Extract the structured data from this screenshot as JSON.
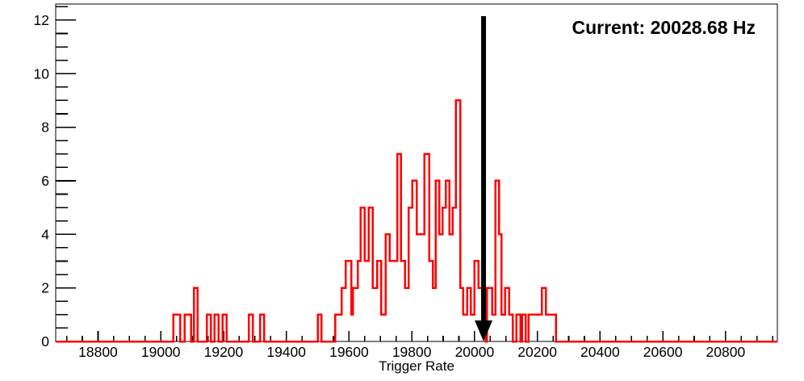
{
  "canvas": {
    "background": "#ffffff"
  },
  "annotation": {
    "current_label": "Current: 20028.68 Hz",
    "arrow_color": "#000000"
  },
  "chart_data": {
    "type": "histogram-step",
    "title": "",
    "xlabel": "Trigger Rate",
    "ylabel": "",
    "legend": null,
    "grid": false,
    "series_color": "#ff0000",
    "axis_color": "#000000",
    "x_range": [
      18665,
      20965
    ],
    "y_range": [
      0,
      12.6
    ],
    "x_tick_values": [
      18800,
      19000,
      19200,
      19400,
      19600,
      19800,
      20000,
      20200,
      20400,
      20600,
      20800
    ],
    "x_tick_labels": [
      "18800",
      "19000",
      "19200",
      "19400",
      "19600",
      "19800",
      "20000",
      "20200",
      "20400",
      "20600",
      "20800"
    ],
    "x_minor_step": 50,
    "y_tick_values": [
      0,
      2,
      4,
      6,
      8,
      10,
      12
    ],
    "y_tick_labels": [
      "0",
      "2",
      "4",
      "6",
      "8",
      "10",
      "12"
    ],
    "y_minor_step": 0.5,
    "arrow": {
      "x": 20028.68
    },
    "bins": [
      [
        19040,
        19062,
        1
      ],
      [
        19076,
        19097,
        1
      ],
      [
        19105,
        19117,
        2
      ],
      [
        19147,
        19160,
        1
      ],
      [
        19171,
        19184,
        1
      ],
      [
        19197,
        19210,
        1
      ],
      [
        19280,
        19293,
        1
      ],
      [
        19317,
        19330,
        1
      ],
      [
        19500,
        19512,
        1
      ],
      [
        19556,
        19576,
        1
      ],
      [
        19576,
        19589,
        2
      ],
      [
        19589,
        19607,
        3
      ],
      [
        19607,
        19613,
        1
      ],
      [
        19613,
        19628,
        2
      ],
      [
        19628,
        19637,
        3
      ],
      [
        19637,
        19650,
        5
      ],
      [
        19650,
        19662,
        3
      ],
      [
        19662,
        19675,
        5
      ],
      [
        19675,
        19690,
        2
      ],
      [
        19690,
        19702,
        3
      ],
      [
        19702,
        19716,
        1
      ],
      [
        19716,
        19730,
        4
      ],
      [
        19730,
        19754,
        3
      ],
      [
        19754,
        19765,
        7
      ],
      [
        19765,
        19778,
        3
      ],
      [
        19778,
        19790,
        2
      ],
      [
        19790,
        19801,
        5
      ],
      [
        19801,
        19815,
        6
      ],
      [
        19815,
        19840,
        4
      ],
      [
        19840,
        19855,
        7
      ],
      [
        19855,
        19867,
        3
      ],
      [
        19867,
        19876,
        2
      ],
      [
        19876,
        19888,
        6
      ],
      [
        19888,
        19898,
        4
      ],
      [
        19898,
        19908,
        5
      ],
      [
        19908,
        19920,
        6
      ],
      [
        19920,
        19930,
        4
      ],
      [
        19930,
        19941,
        5
      ],
      [
        19941,
        19954,
        9
      ],
      [
        19954,
        19964,
        2
      ],
      [
        19964,
        19976,
        1
      ],
      [
        19976,
        19988,
        2
      ],
      [
        19988,
        20000,
        1
      ],
      [
        20000,
        20012,
        3
      ],
      [
        20012,
        20024,
        2
      ],
      [
        20024,
        20036,
        1
      ],
      [
        20040,
        20056,
        2
      ],
      [
        20056,
        20066,
        1
      ],
      [
        20066,
        20078,
        6
      ],
      [
        20078,
        20086,
        4
      ],
      [
        20086,
        20097,
        1
      ],
      [
        20097,
        20110,
        2
      ],
      [
        20110,
        20122,
        1
      ],
      [
        20134,
        20146,
        1
      ],
      [
        20152,
        20163,
        1
      ],
      [
        20172,
        20214,
        1
      ],
      [
        20214,
        20227,
        2
      ],
      [
        20227,
        20260,
        1
      ]
    ]
  }
}
